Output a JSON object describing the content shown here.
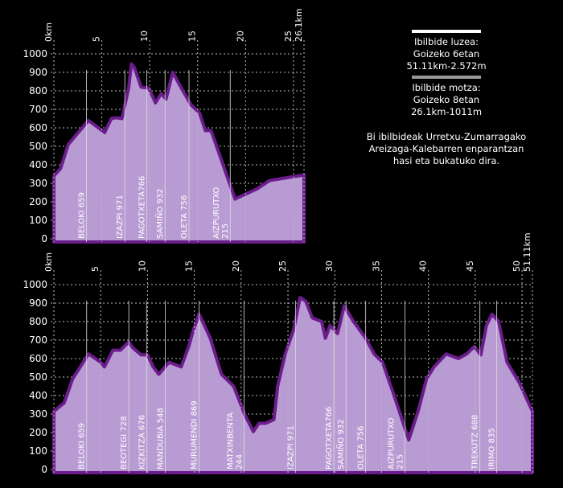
{
  "chart_data": [
    {
      "type": "area",
      "color": "#b99bd3",
      "stroke": "#6b1d8c",
      "x": [
        0,
        0.7,
        1.5,
        3.6,
        5.3,
        6.0,
        6.5,
        7.1,
        7.8,
        8.1,
        8.4,
        9.1,
        9.9,
        10.6,
        11.2,
        11.7,
        12.4,
        13.3,
        14.3,
        15.2,
        15.8,
        16.4,
        18.9,
        19.3,
        21.2,
        22.5,
        23.7,
        26.1
      ],
      "values": [
        340,
        380,
        510,
        640,
        575,
        650,
        655,
        650,
        815,
        945,
        925,
        820,
        815,
        735,
        785,
        755,
        900,
        815,
        725,
        680,
        585,
        585,
        215,
        225,
        270,
        315,
        325,
        345
      ],
      "xlim": [
        0,
        26.1
      ],
      "xticks": [
        {
          "value": 0,
          "label": "0km"
        },
        5,
        10,
        15,
        20,
        25,
        {
          "value": 26.1,
          "label": "26.1km"
        }
      ],
      "ylim": [
        0,
        1000
      ],
      "yticks": [
        0,
        100,
        200,
        300,
        400,
        500,
        600,
        700,
        800,
        900,
        1000
      ],
      "grid": true,
      "annotations": [
        {
          "x": 3.4,
          "lines": [
            "BELOKI 659"
          ]
        },
        {
          "x": 7.4,
          "lines": [
            "IZAZPI 971"
          ]
        },
        {
          "x": 9.7,
          "lines": [
            "PAGOTXETA766"
          ]
        },
        {
          "x": 11.6,
          "lines": [
            "SAMIÑO 932"
          ]
        },
        {
          "x": 14.1,
          "lines": [
            "OLETA 756"
          ]
        },
        {
          "x": 18.4,
          "lines": [
            "AIZPURUTXO",
            "215"
          ]
        }
      ]
    },
    {
      "type": "area",
      "color": "#b99bd3",
      "stroke": "#6b1d8c",
      "x": [
        0,
        1.1,
        2.0,
        3.7,
        5.0,
        5.4,
        6.3,
        7.1,
        8.0,
        8.4,
        9.3,
        10.0,
        10.6,
        11.2,
        12.3,
        13.6,
        14.4,
        14.9,
        15.5,
        15.7,
        16.7,
        17.9,
        19.2,
        20.4,
        21.3,
        21.9,
        22.6,
        23.5,
        23.9,
        24.7,
        25.6,
        26.3,
        26.9,
        27.6,
        28.6,
        29.0,
        29.5,
        30.3,
        31.0,
        32.0,
        33.3,
        34.2,
        35.1,
        36.3,
        37.9,
        38.9,
        39.8,
        40.6,
        41.9,
        43.2,
        44.1,
        44.9,
        45.6,
        46.2,
        46.8,
        47.5,
        48.4,
        49.7,
        51.11
      ],
      "values": [
        315,
        360,
        490,
        625,
        580,
        555,
        645,
        645,
        690,
        660,
        620,
        620,
        555,
        515,
        580,
        555,
        665,
        755,
        840,
        820,
        710,
        515,
        450,
        295,
        205,
        250,
        250,
        270,
        450,
        625,
        755,
        930,
        910,
        820,
        800,
        710,
        780,
        735,
        885,
        800,
        710,
        625,
        580,
        405,
        160,
        315,
        490,
        555,
        625,
        600,
        625,
        665,
        620,
        780,
        840,
        800,
        580,
        470,
        315
      ],
      "xlim": [
        0,
        51.11
      ],
      "xticks": [
        {
          "value": 0,
          "label": "0km"
        },
        5,
        10,
        15,
        20,
        25,
        30,
        35,
        40,
        45,
        50,
        {
          "value": 51.11,
          "label": "51.11km"
        }
      ],
      "ylim": [
        0,
        1000
      ],
      "yticks": [
        0,
        100,
        200,
        300,
        400,
        500,
        600,
        700,
        800,
        900,
        1000
      ],
      "grid": true,
      "annotations": [
        {
          "x": 3.5,
          "lines": [
            "BELOKI 659"
          ]
        },
        {
          "x": 8.0,
          "lines": [
            "BEOTEGI 728"
          ]
        },
        {
          "x": 9.9,
          "lines": [
            "KIZKITZA 676"
          ]
        },
        {
          "x": 11.9,
          "lines": [
            "MANDUBIA 548"
          ]
        },
        {
          "x": 15.5,
          "lines": [
            "MURUMENDI 869"
          ]
        },
        {
          "x": 20.3,
          "lines": [
            "MATXINBENTA",
            "244"
          ]
        },
        {
          "x": 25.8,
          "lines": [
            "IZAZPI 971"
          ]
        },
        {
          "x": 29.9,
          "lines": [
            "PAGOTXETA766"
          ]
        },
        {
          "x": 31.2,
          "lines": [
            "SAMIÑO 932"
          ]
        },
        {
          "x": 33.3,
          "lines": [
            "OLETA 756"
          ]
        },
        {
          "x": 37.5,
          "lines": [
            "AIZPURUTXO",
            "215"
          ]
        },
        {
          "x": 45.5,
          "lines": [
            "TREKUTZ 688"
          ]
        },
        {
          "x": 47.3,
          "lines": [
            "IRIMO 835"
          ]
        }
      ]
    }
  ],
  "info": {
    "long": [
      "Ibilbide luzea:",
      "Goizeko 6etan",
      "51.11km-2.572m"
    ],
    "short": [
      "Ibilbide motza:",
      "Goizeko 8etan",
      "26.1km-1011m"
    ],
    "text": [
      "Bi ibilbideak Urretxu-Zumarragako",
      "Areizaga-Kalebarren enparantzan",
      "hasi eta bukatuko dira."
    ]
  }
}
